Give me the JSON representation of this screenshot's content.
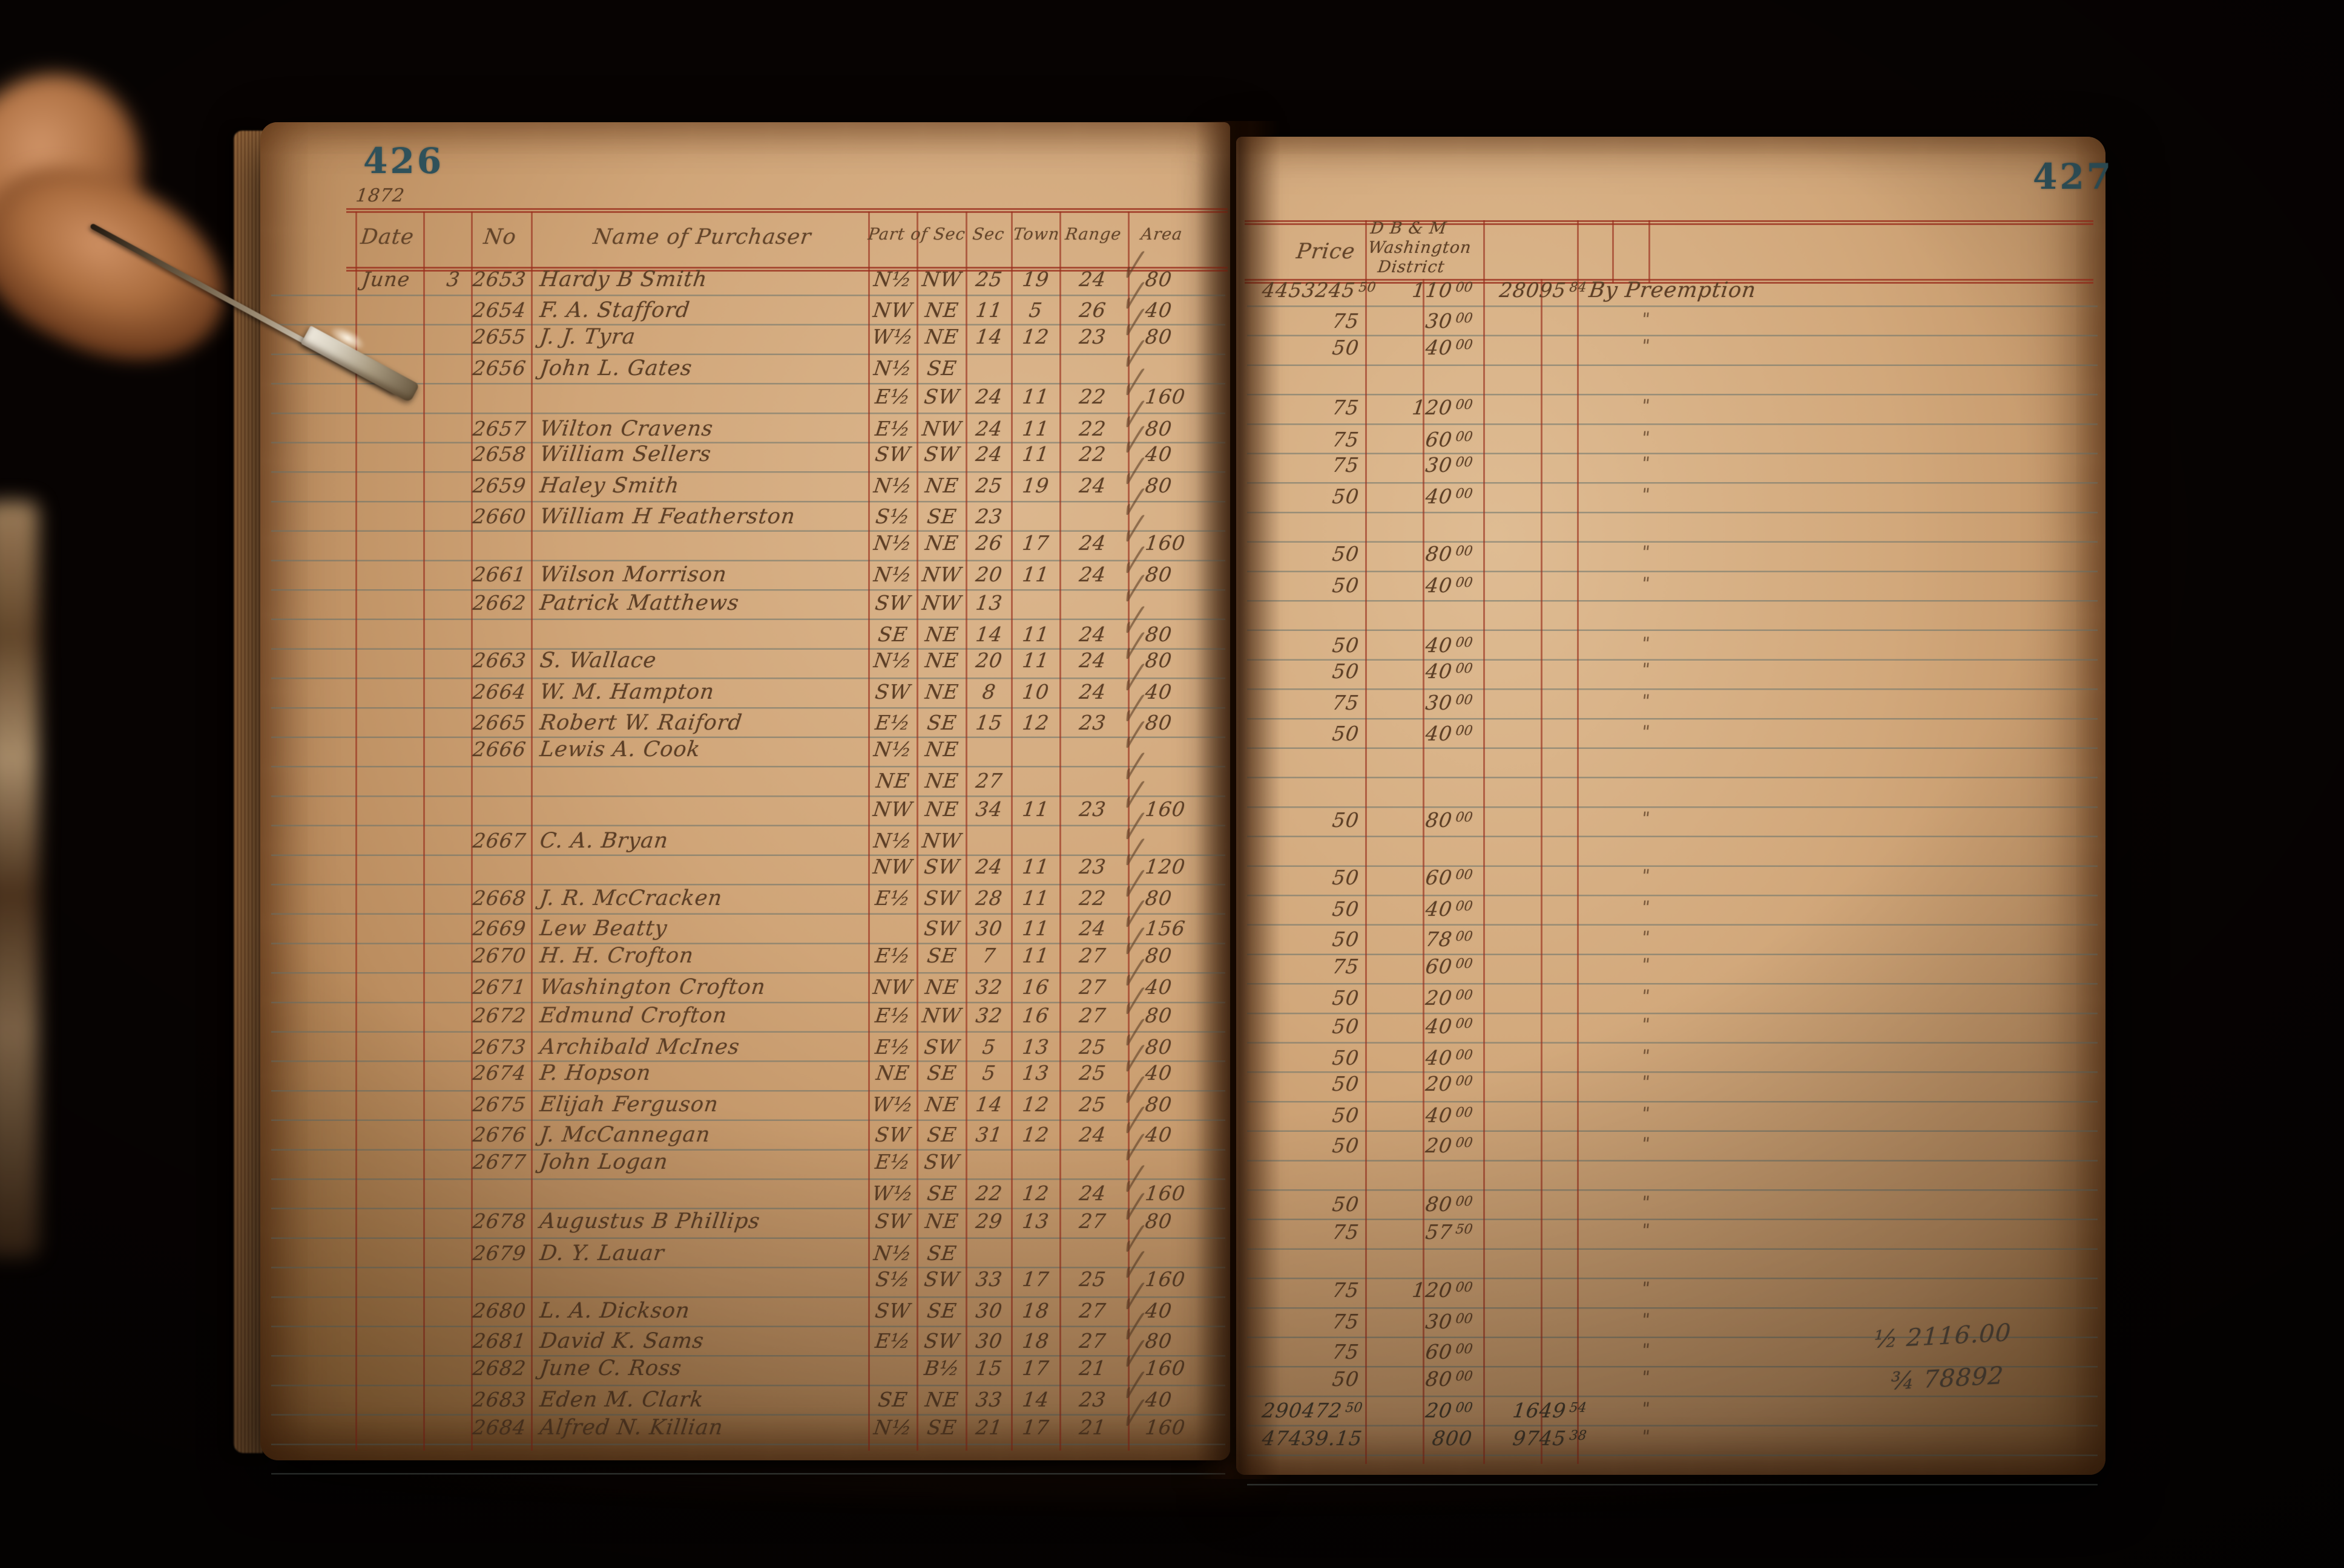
{
  "left_page": {
    "page_number": "426",
    "year_note": "1872",
    "headers": {
      "date": "Date",
      "no": "No",
      "name": "Name of Purchaser",
      "part": "Part of Sec",
      "sec": "Sec",
      "town": "Town",
      "range": "Range",
      "area": "Area"
    }
  },
  "right_page": {
    "page_number": "427",
    "headers": {
      "price": "Price",
      "district_line1": "D B & M",
      "district_line2": "Washington",
      "district_line3": "District"
    },
    "pencil_notes": [
      {
        "fraction": "½",
        "value": "2116.00"
      },
      {
        "fraction": "¾",
        "value": "78892"
      }
    ]
  },
  "rows": [
    {
      "dt": "June",
      "dy": "3",
      "no": "2653",
      "nm": "Hardy B Smith",
      "p1": "N½",
      "p2": "NW",
      "sc": "25",
      "tn": "19",
      "rg": "24",
      "ar": "80",
      "ck": true,
      "pr": "4453245 50",
      "am": "110 00",
      "ex": "28095 84",
      "rm": "By Preemption"
    },
    {
      "no": "2654",
      "nm": "F. A. Stafford",
      "p1": "NW",
      "p2": "NE",
      "sc": "11",
      "tn": "5",
      "rg": "26",
      "ar": "40",
      "ck": true,
      "pr": "75",
      "am": "30 00",
      "rm": "\""
    },
    {
      "no": "2655",
      "nm": "J. J. Tyra",
      "p1": "W½",
      "p2": "NE",
      "sc": "14",
      "tn": "12",
      "rg": "23",
      "ar": "80",
      "ck": true,
      "pr": "50",
      "am": "40 00",
      "rm": "\""
    },
    {
      "no": "2656",
      "nm": "John L. Gates",
      "p1": "N½",
      "p2": "SE",
      "ck": true
    },
    {
      "p1": "E½",
      "p2": "SW",
      "sc": "24",
      "tn": "11",
      "rg": "22",
      "ar": "160",
      "ck": true,
      "pr": "75",
      "am": "120 00",
      "rm": "\""
    },
    {
      "no": "2657",
      "nm": "Wilton Cravens",
      "p1": "E½",
      "p2": "NW",
      "sc": "24",
      "tn": "11",
      "rg": "22",
      "ar": "80",
      "ck": true,
      "pr": "75",
      "am": "60 00",
      "rm": "\""
    },
    {
      "no": "2658",
      "nm": "William Sellers",
      "p1": "SW",
      "p2": "SW",
      "sc": "24",
      "tn": "11",
      "rg": "22",
      "ar": "40",
      "ck": true,
      "pr": "75",
      "am": "30 00",
      "rm": "\""
    },
    {
      "no": "2659",
      "nm": "Haley Smith",
      "p1": "N½",
      "p2": "NE",
      "sc": "25",
      "tn": "19",
      "rg": "24",
      "ar": "80",
      "ck": true,
      "pr": "50",
      "am": "40 00",
      "rm": "\""
    },
    {
      "no": "2660",
      "nm": "William H Featherston",
      "p1": "S½",
      "p2": "SE",
      "sc": "23",
      "ck": true
    },
    {
      "p1": "N½",
      "p2": "NE",
      "sc": "26",
      "tn": "17",
      "rg": "24",
      "ar": "160",
      "ck": true,
      "pr": "50",
      "am": "80 00",
      "rm": "\""
    },
    {
      "no": "2661",
      "nm": "Wilson Morrison",
      "p1": "N½",
      "p2": "NW",
      "sc": "20",
      "tn": "11",
      "rg": "24",
      "ar": "80",
      "ck": true,
      "pr": "50",
      "am": "40 00",
      "rm": "\""
    },
    {
      "no": "2662",
      "nm": "Patrick Matthews",
      "p1": "SW",
      "p2": "NW",
      "sc": "13",
      "ck": true
    },
    {
      "p1": "SE",
      "p2": "NE",
      "sc": "14",
      "tn": "11",
      "rg": "24",
      "ar": "80",
      "ck": true,
      "pr": "50",
      "am": "40 00",
      "rm": "\""
    },
    {
      "no": "2663",
      "nm": "S. Wallace",
      "p1": "N½",
      "p2": "NE",
      "sc": "20",
      "tn": "11",
      "rg": "24",
      "ar": "80",
      "ck": true,
      "pr": "50",
      "am": "40 00",
      "rm": "\""
    },
    {
      "no": "2664",
      "nm": "W. M. Hampton",
      "p1": "SW",
      "p2": "NE",
      "sc": "8",
      "tn": "10",
      "rg": "24",
      "ar": "40",
      "ck": true,
      "pr": "75",
      "am": "30 00",
      "rm": "\""
    },
    {
      "no": "2665",
      "nm": "Robert W. Raiford",
      "p1": "E½",
      "p2": "SE",
      "sc": "15",
      "tn": "12",
      "rg": "23",
      "ar": "80",
      "ck": true,
      "pr": "50",
      "am": "40 00",
      "rm": "\""
    },
    {
      "no": "2666",
      "nm": "Lewis A. Cook",
      "p1": "N½",
      "p2": "NE",
      "ck": true
    },
    {
      "p1": "NE",
      "p2": "NE",
      "sc": "27",
      "ck": true
    },
    {
      "p1": "NW",
      "p2": "NE",
      "sc": "34",
      "tn": "11",
      "rg": "23",
      "ar": "160",
      "ck": true,
      "pr": "50",
      "am": "80 00",
      "rm": "\""
    },
    {
      "no": "2667",
      "nm": "C. A. Bryan",
      "p1": "N½",
      "p2": "NW",
      "ck": true
    },
    {
      "p1": "NW",
      "p2": "SW",
      "sc": "24",
      "tn": "11",
      "rg": "23",
      "ar": "120",
      "ck": true,
      "pr": "50",
      "am": "60 00",
      "rm": "\""
    },
    {
      "no": "2668",
      "nm": "J. R. McCracken",
      "p1": "E½",
      "p2": "SW",
      "sc": "28",
      "tn": "11",
      "rg": "22",
      "ar": "80",
      "ck": true,
      "pr": "50",
      "am": "40 00",
      "rm": "\""
    },
    {
      "no": "2669",
      "nm": "Lew Beatty",
      "p2": "SW",
      "sc": "30",
      "tn": "11",
      "rg": "24",
      "ar": "156",
      "ck": true,
      "pr": "50",
      "am": "78 00",
      "rm": "\""
    },
    {
      "no": "2670",
      "nm": "H. H. Crofton",
      "p1": "E½",
      "p2": "SE",
      "sc": "7",
      "tn": "11",
      "rg": "27",
      "ar": "80",
      "ck": true,
      "pr": "75",
      "am": "60 00",
      "rm": "\""
    },
    {
      "no": "2671",
      "nm": "Washington Crofton",
      "p1": "NW",
      "p2": "NE",
      "sc": "32",
      "tn": "16",
      "rg": "27",
      "ar": "40",
      "ck": true,
      "pr": "50",
      "am": "20 00",
      "rm": "\""
    },
    {
      "no": "2672",
      "nm": "Edmund Crofton",
      "p1": "E½",
      "p2": "NW",
      "sc": "32",
      "tn": "16",
      "rg": "27",
      "ar": "80",
      "ck": true,
      "pr": "50",
      "am": "40 00",
      "rm": "\""
    },
    {
      "no": "2673",
      "nm": "Archibald McInes",
      "p1": "E½",
      "p2": "SW",
      "sc": "5",
      "tn": "13",
      "rg": "25",
      "ar": "80",
      "ck": true,
      "pr": "50",
      "am": "40 00",
      "rm": "\""
    },
    {
      "no": "2674",
      "nm": "P. Hopson",
      "p1": "NE",
      "p2": "SE",
      "sc": "5",
      "tn": "13",
      "rg": "25",
      "ar": "40",
      "ck": true,
      "pr": "50",
      "am": "20 00",
      "rm": "\""
    },
    {
      "no": "2675",
      "nm": "Elijah Ferguson",
      "p1": "W½",
      "p2": "NE",
      "sc": "14",
      "tn": "12",
      "rg": "25",
      "ar": "80",
      "ck": true,
      "pr": "50",
      "am": "40 00",
      "rm": "\""
    },
    {
      "no": "2676",
      "nm": "J. McCannegan",
      "p1": "SW",
      "p2": "SE",
      "sc": "31",
      "tn": "12",
      "rg": "24",
      "ar": "40",
      "ck": true,
      "pr": "50",
      "am": "20 00",
      "rm": "\""
    },
    {
      "no": "2677",
      "nm": "John Logan",
      "p1": "E½",
      "p2": "SW",
      "ck": true
    },
    {
      "p1": "W½",
      "p2": "SE",
      "sc": "22",
      "tn": "12",
      "rg": "24",
      "ar": "160",
      "ck": true,
      "pr": "50",
      "am": "80 00",
      "rm": "\""
    },
    {
      "no": "2678",
      "nm": "Augustus B Phillips",
      "p1": "SW",
      "p2": "NE",
      "sc": "29",
      "tn": "13",
      "rg": "27",
      "ar": "80",
      "ck": true,
      "pr": "75",
      "am": "57 50",
      "rm": "\""
    },
    {
      "no": "2679",
      "nm": "D. Y. Lauar",
      "p1": "N½",
      "p2": "SE",
      "ck": true
    },
    {
      "p1": "S½",
      "p2": "SW",
      "sc": "33",
      "tn": "17",
      "rg": "25",
      "ar": "160",
      "ck": true,
      "pr": "75",
      "am": "120 00",
      "rm": "\""
    },
    {
      "no": "2680",
      "nm": "L. A. Dickson",
      "p1": "SW",
      "p2": "SE",
      "sc": "30",
      "tn": "18",
      "rg": "27",
      "ar": "40",
      "ck": true,
      "pr": "75",
      "am": "30 00",
      "rm": "\""
    },
    {
      "no": "2681",
      "nm": "David K. Sams",
      "p1": "E½",
      "p2": "SW",
      "sc": "30",
      "tn": "18",
      "rg": "27",
      "ar": "80",
      "ck": true,
      "pr": "75",
      "am": "60 00",
      "rm": "\""
    },
    {
      "no": "2682",
      "nm": "June C. Ross",
      "p2": "B½",
      "sc": "15",
      "tn": "17",
      "rg": "21",
      "ar": "160",
      "ck": true,
      "pr": "50",
      "am": "80 00",
      "rm": "\""
    },
    {
      "no": "2683",
      "nm": "Eden M. Clark",
      "p1": "SE",
      "p2": "NE",
      "sc": "33",
      "tn": "14",
      "rg": "23",
      "ar": "40",
      "ck": true,
      "pr": "290472 50",
      "am": "20 00",
      "ex": "1649 54",
      "rm": "\""
    },
    {
      "no": "2684",
      "nm": "Alfred N. Killian",
      "p1": "N½",
      "p2": "SE",
      "sc": "21",
      "tn": "17",
      "rg": "21",
      "ar": "160",
      "ck": true,
      "pr": "47439.15",
      "am": "800",
      "ex": "9745 38",
      "rm": "\""
    }
  ],
  "colors": {
    "background": "#070302",
    "paper": "#d0a578",
    "rule_red": "#982d1c",
    "rule_gray": "#646f6a",
    "ink": "#5d3f26",
    "page_number_ink": "#2f515a",
    "pencil": "#5b4d3f"
  }
}
